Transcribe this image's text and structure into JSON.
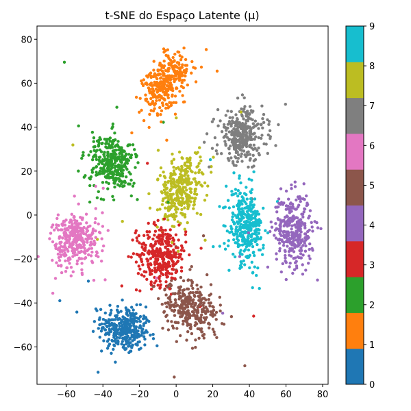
{
  "chart_data": {
    "type": "scatter",
    "title": "t-SNE do Espaço Latente (μ)",
    "xlabel": "",
    "ylabel": "",
    "xlim": [
      -76,
      83
    ],
    "ylim": [
      -77,
      86
    ],
    "xticks": [
      -60,
      -40,
      -20,
      0,
      20,
      40,
      60,
      80
    ],
    "yticks": [
      -60,
      -40,
      -20,
      0,
      20,
      40,
      60,
      80
    ],
    "grid": false,
    "colormap": "tab10",
    "colorbar": {
      "range": [
        0,
        9
      ],
      "ticks": [
        0,
        1,
        2,
        3,
        4,
        5,
        6,
        7,
        8,
        9
      ],
      "colors": [
        "#1f77b4",
        "#ff7f0e",
        "#2ca02c",
        "#d62728",
        "#9467bd",
        "#8c564b",
        "#e377c2",
        "#7f7f7f",
        "#bcbd22",
        "#17becf"
      ]
    },
    "clusters": [
      {
        "label": 0,
        "center": [
          -28,
          -52
        ],
        "spread": [
          9,
          7
        ],
        "tilt": -0.2,
        "n": 340
      },
      {
        "label": 1,
        "center": [
          -6,
          60
        ],
        "spread": [
          6,
          10
        ],
        "tilt": -0.6,
        "n": 330
      },
      {
        "label": 2,
        "center": [
          -35,
          24
        ],
        "spread": [
          8,
          9
        ],
        "tilt": 0.3,
        "n": 330
      },
      {
        "label": 3,
        "center": [
          -8,
          -18
        ],
        "spread": [
          9,
          9
        ],
        "tilt": 0.0,
        "n": 330
      },
      {
        "label": 4,
        "center": [
          64,
          -7
        ],
        "spread": [
          7,
          11
        ],
        "tilt": 0.1,
        "n": 330
      },
      {
        "label": 5,
        "center": [
          8,
          -42
        ],
        "spread": [
          10,
          8
        ],
        "tilt": -0.5,
        "n": 320
      },
      {
        "label": 6,
        "center": [
          -55,
          -11
        ],
        "spread": [
          9,
          8
        ],
        "tilt": 0.5,
        "n": 320
      },
      {
        "label": 7,
        "center": [
          36,
          36
        ],
        "spread": [
          9,
          8
        ],
        "tilt": 0.2,
        "n": 320
      },
      {
        "label": 8,
        "center": [
          2,
          11
        ],
        "spread": [
          8,
          10
        ],
        "tilt": -0.4,
        "n": 330
      },
      {
        "label": 9,
        "center": [
          38,
          -5
        ],
        "spread": [
          6,
          11
        ],
        "tilt": 0.1,
        "n": 330
      }
    ]
  }
}
